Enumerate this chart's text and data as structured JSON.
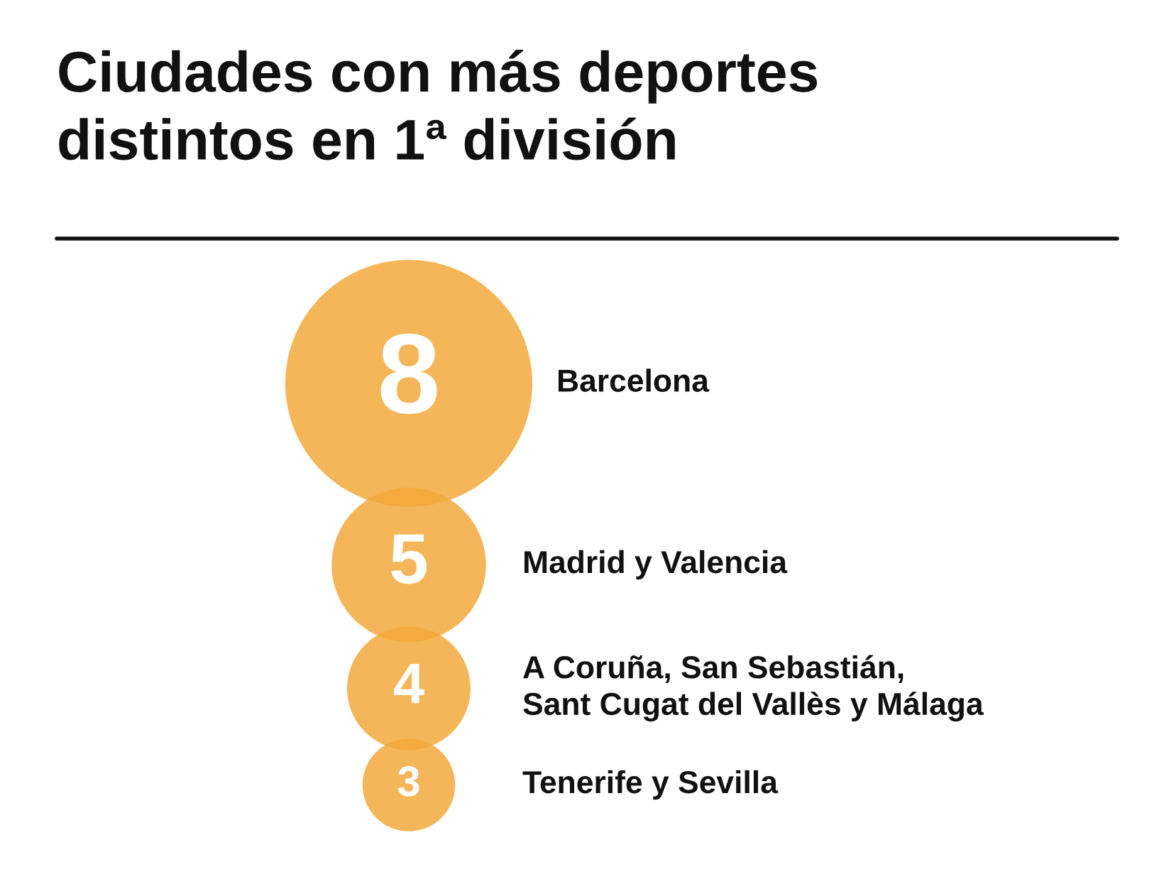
{
  "chart_data": {
    "type": "other",
    "title": "Ciudades con más deportes\ndistintos en 1ª división",
    "categories": [
      "Barcelona",
      "Madrid y Valencia",
      "A Coruña, San Sebastián,\nSant Cugat del Vallès y Málaga",
      "Tenerife y Sevilla"
    ],
    "values": [
      8,
      5,
      4,
      3
    ],
    "color": "#f2a93b",
    "data_labels": true
  }
}
